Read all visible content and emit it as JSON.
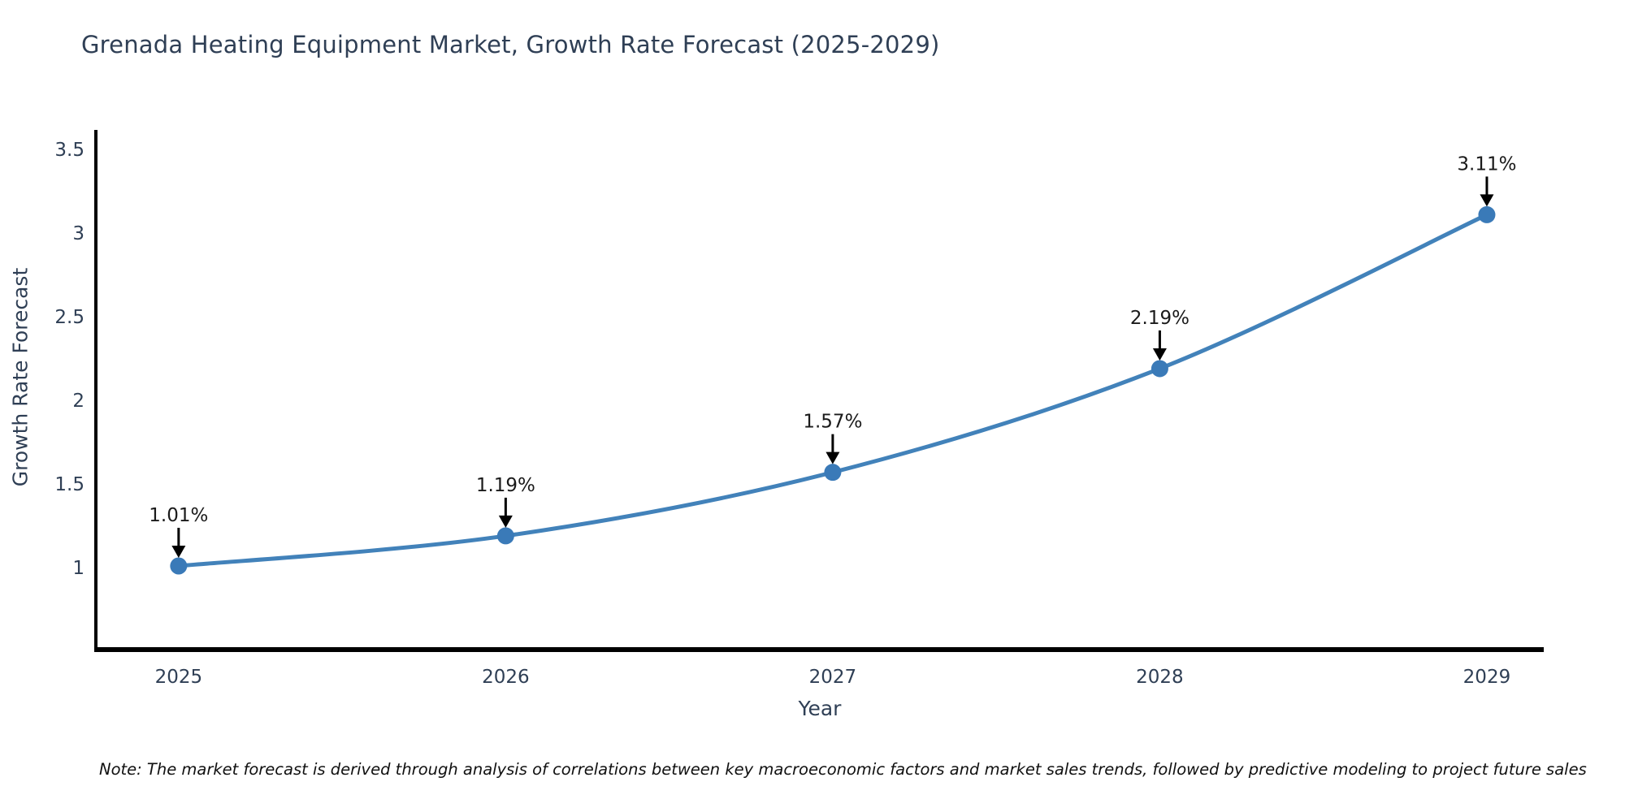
{
  "page": {
    "background_color": "#ffffff"
  },
  "chart_data": {
    "type": "line",
    "title": "Grenada Heating Equipment Market, Growth Rate Forecast (2025-2029)",
    "xlabel": "Year",
    "ylabel": "Growth Rate Forecast",
    "x": [
      2025,
      2026,
      2027,
      2028,
      2029
    ],
    "series": [
      {
        "name": "Growth Rate Forecast",
        "values": [
          1.01,
          1.19,
          1.57,
          2.19,
          3.11
        ],
        "point_labels": [
          "1.01%",
          "1.19%",
          "1.57%",
          "2.19%",
          "3.11%"
        ]
      }
    ],
    "x_tick_labels": [
      "2025",
      "2026",
      "2027",
      "2028",
      "2029"
    ],
    "y_tick_values": [
      1,
      1.5,
      2,
      2.5,
      3,
      3.5
    ],
    "y_tick_labels": [
      "1",
      "1.5",
      "2",
      "2.5",
      "3",
      "3.5"
    ],
    "xlim": [
      2024.747,
      2029.174
    ],
    "ylim": [
      0.51,
      3.617
    ],
    "grid": false,
    "legend_position": "none",
    "line_style": "smooth",
    "marker": "circle",
    "annotations_have_arrows": true,
    "note": "Note: The market forecast is derived through analysis of correlations between key macroeconomic factors and market sales trends, followed by predictive modeling to project future sales",
    "colors": {
      "line": "#4282ba",
      "marker": "#3a7ab8",
      "axis_line": "#000000",
      "tick_text": "#2f3f55",
      "title_text": "#2f3f55",
      "annotation_text": "#1a1a1a",
      "annotation_arrow": "#000000",
      "background": "#ffffff"
    }
  }
}
